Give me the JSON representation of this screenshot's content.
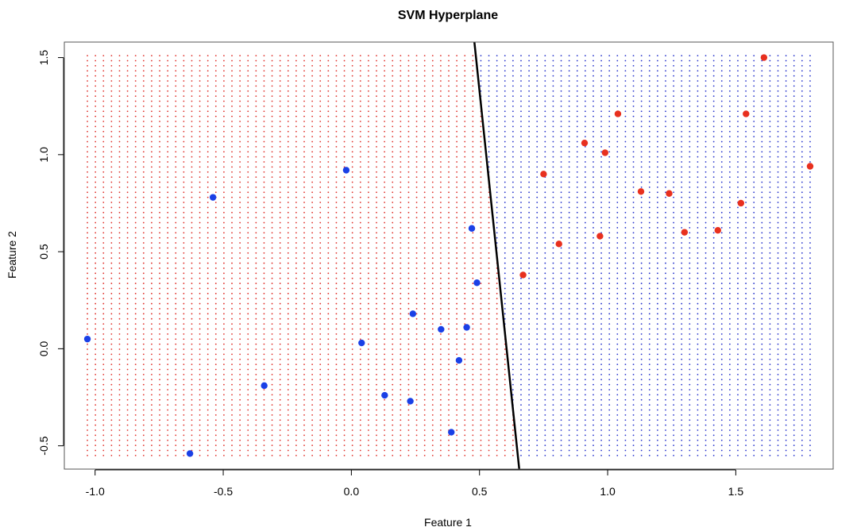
{
  "chart_data": {
    "type": "scatter",
    "title": "SVM Hyperplane",
    "xlabel": "Feature 1",
    "ylabel": "Feature 2",
    "xlim": [
      -1.12,
      1.88
    ],
    "ylim": [
      -0.62,
      1.58
    ],
    "x_ticks": [
      -1.0,
      -0.5,
      0.0,
      0.5,
      1.0,
      1.5
    ],
    "x_tick_labels": [
      "-1.0",
      "-0.5",
      "0.0",
      "0.5",
      "1.0",
      "1.5"
    ],
    "y_ticks": [
      -0.5,
      0.0,
      0.5,
      1.0,
      1.5
    ],
    "y_tick_labels": [
      "-0.5",
      "0.0",
      "0.5",
      "1.0",
      "1.5"
    ],
    "grid": false,
    "legend": "none",
    "background_grid": {
      "x_range": [
        -1.03,
        1.79
      ],
      "y_range": [
        -0.55,
        1.51
      ],
      "x_count": 91,
      "y_count": 80
    },
    "decision_boundary": {
      "points": [
        [
          0.48,
          1.58
        ],
        [
          0.655,
          -0.62
        ]
      ],
      "color": "#000000"
    },
    "classes": [
      {
        "color": "#1a40e6",
        "region_color": "#2633cc"
      },
      {
        "color": "#e8301e",
        "region_color": "#e0302a"
      }
    ],
    "series": [
      {
        "color": "#1a40e6",
        "points": [
          [
            -1.03,
            0.05
          ],
          [
            -0.54,
            0.78
          ],
          [
            -0.63,
            -0.54
          ],
          [
            -0.34,
            -0.19
          ],
          [
            -0.02,
            0.92
          ],
          [
            0.04,
            0.03
          ],
          [
            0.13,
            -0.24
          ],
          [
            0.23,
            -0.27
          ],
          [
            0.24,
            0.18
          ],
          [
            0.35,
            0.1
          ],
          [
            0.39,
            -0.43
          ],
          [
            0.42,
            -0.06
          ],
          [
            0.45,
            0.11
          ],
          [
            0.47,
            0.62
          ],
          [
            0.49,
            0.34
          ]
        ]
      },
      {
        "color": "#e8301e",
        "points": [
          [
            0.67,
            0.38
          ],
          [
            0.75,
            0.9
          ],
          [
            0.81,
            0.54
          ],
          [
            0.91,
            1.06
          ],
          [
            0.97,
            0.58
          ],
          [
            0.99,
            1.01
          ],
          [
            1.04,
            1.21
          ],
          [
            1.13,
            0.81
          ],
          [
            1.24,
            0.8
          ],
          [
            1.3,
            0.6
          ],
          [
            1.43,
            0.61
          ],
          [
            1.52,
            0.75
          ],
          [
            1.54,
            1.21
          ],
          [
            1.61,
            1.5
          ],
          [
            1.79,
            0.94
          ]
        ]
      }
    ]
  }
}
